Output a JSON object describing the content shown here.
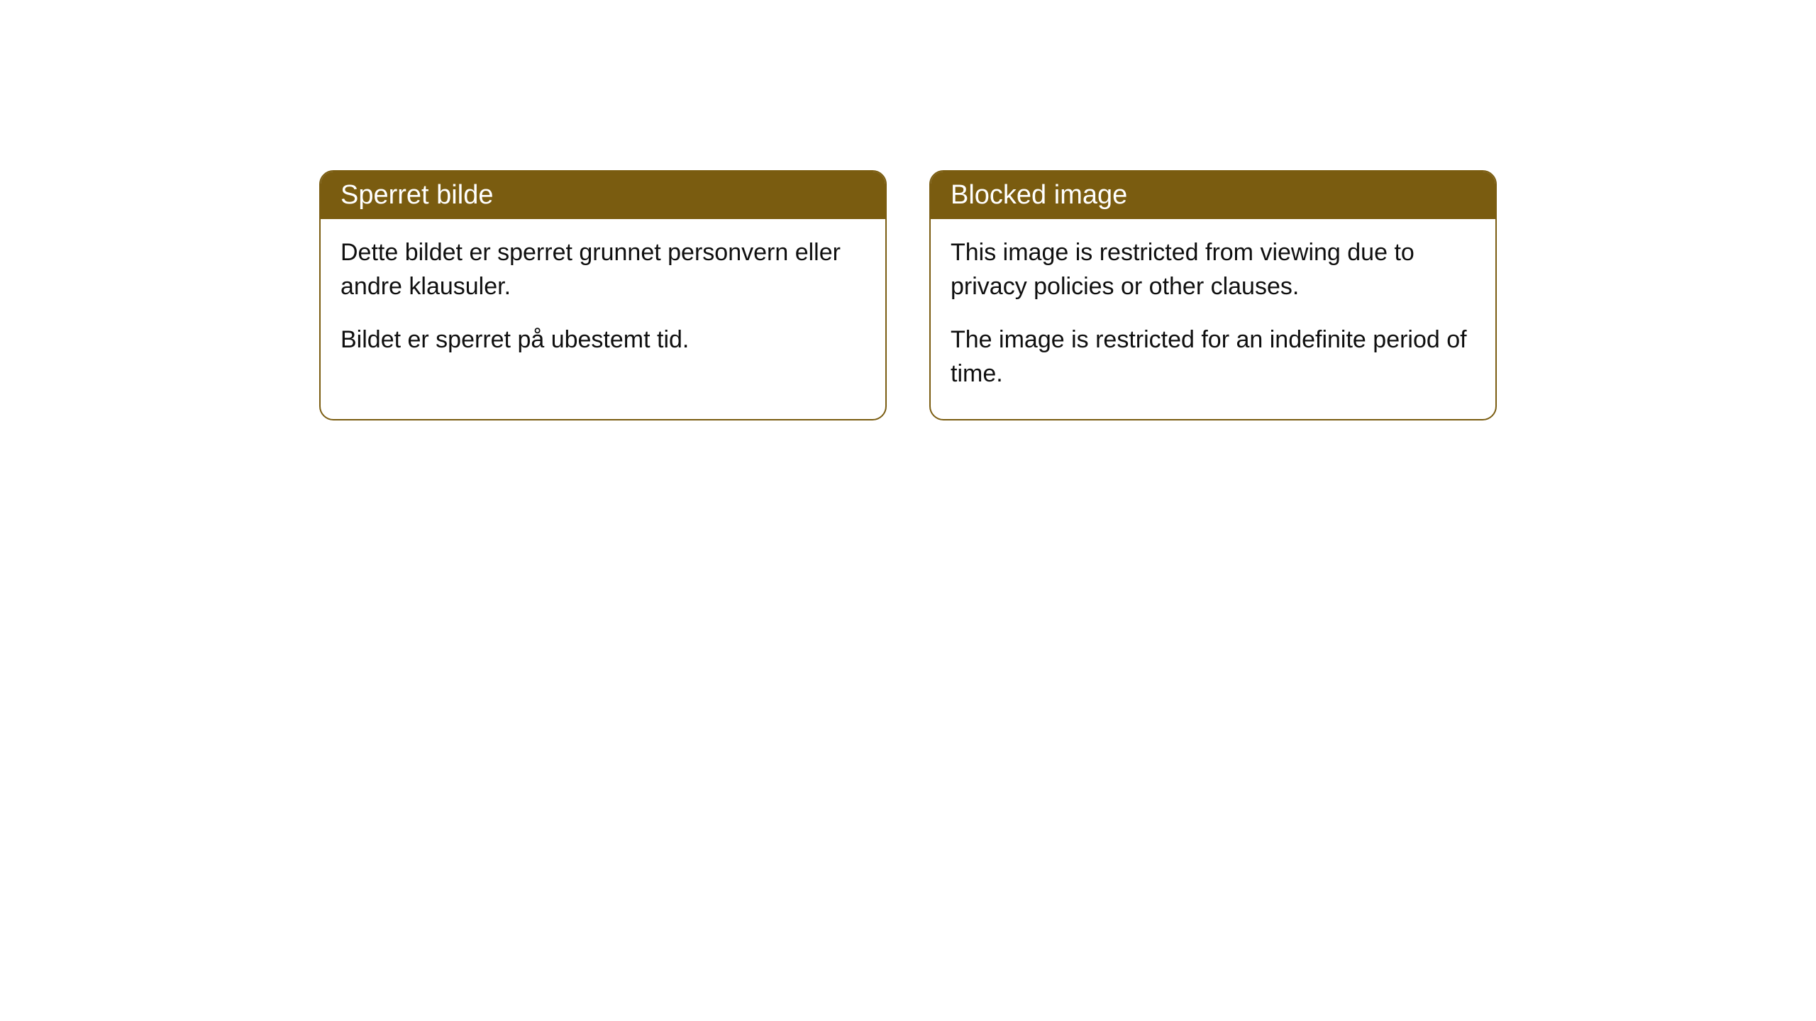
{
  "cards": [
    {
      "title": "Sperret bilde",
      "paragraph1": "Dette bildet er sperret grunnet personvern eller andre klausuler.",
      "paragraph2": "Bildet er sperret på ubestemt tid."
    },
    {
      "title": "Blocked image",
      "paragraph1": "This image is restricted from viewing due to privacy policies or other clauses.",
      "paragraph2": "The image is restricted for an indefinite period of time."
    }
  ],
  "styling": {
    "header_background": "#7a5c10",
    "header_text_color": "#ffffff",
    "border_color": "#7a5c10",
    "body_background": "#ffffff",
    "body_text_color": "#0f0f0f",
    "border_radius": 20,
    "header_fontsize": 38,
    "body_fontsize": 34
  }
}
